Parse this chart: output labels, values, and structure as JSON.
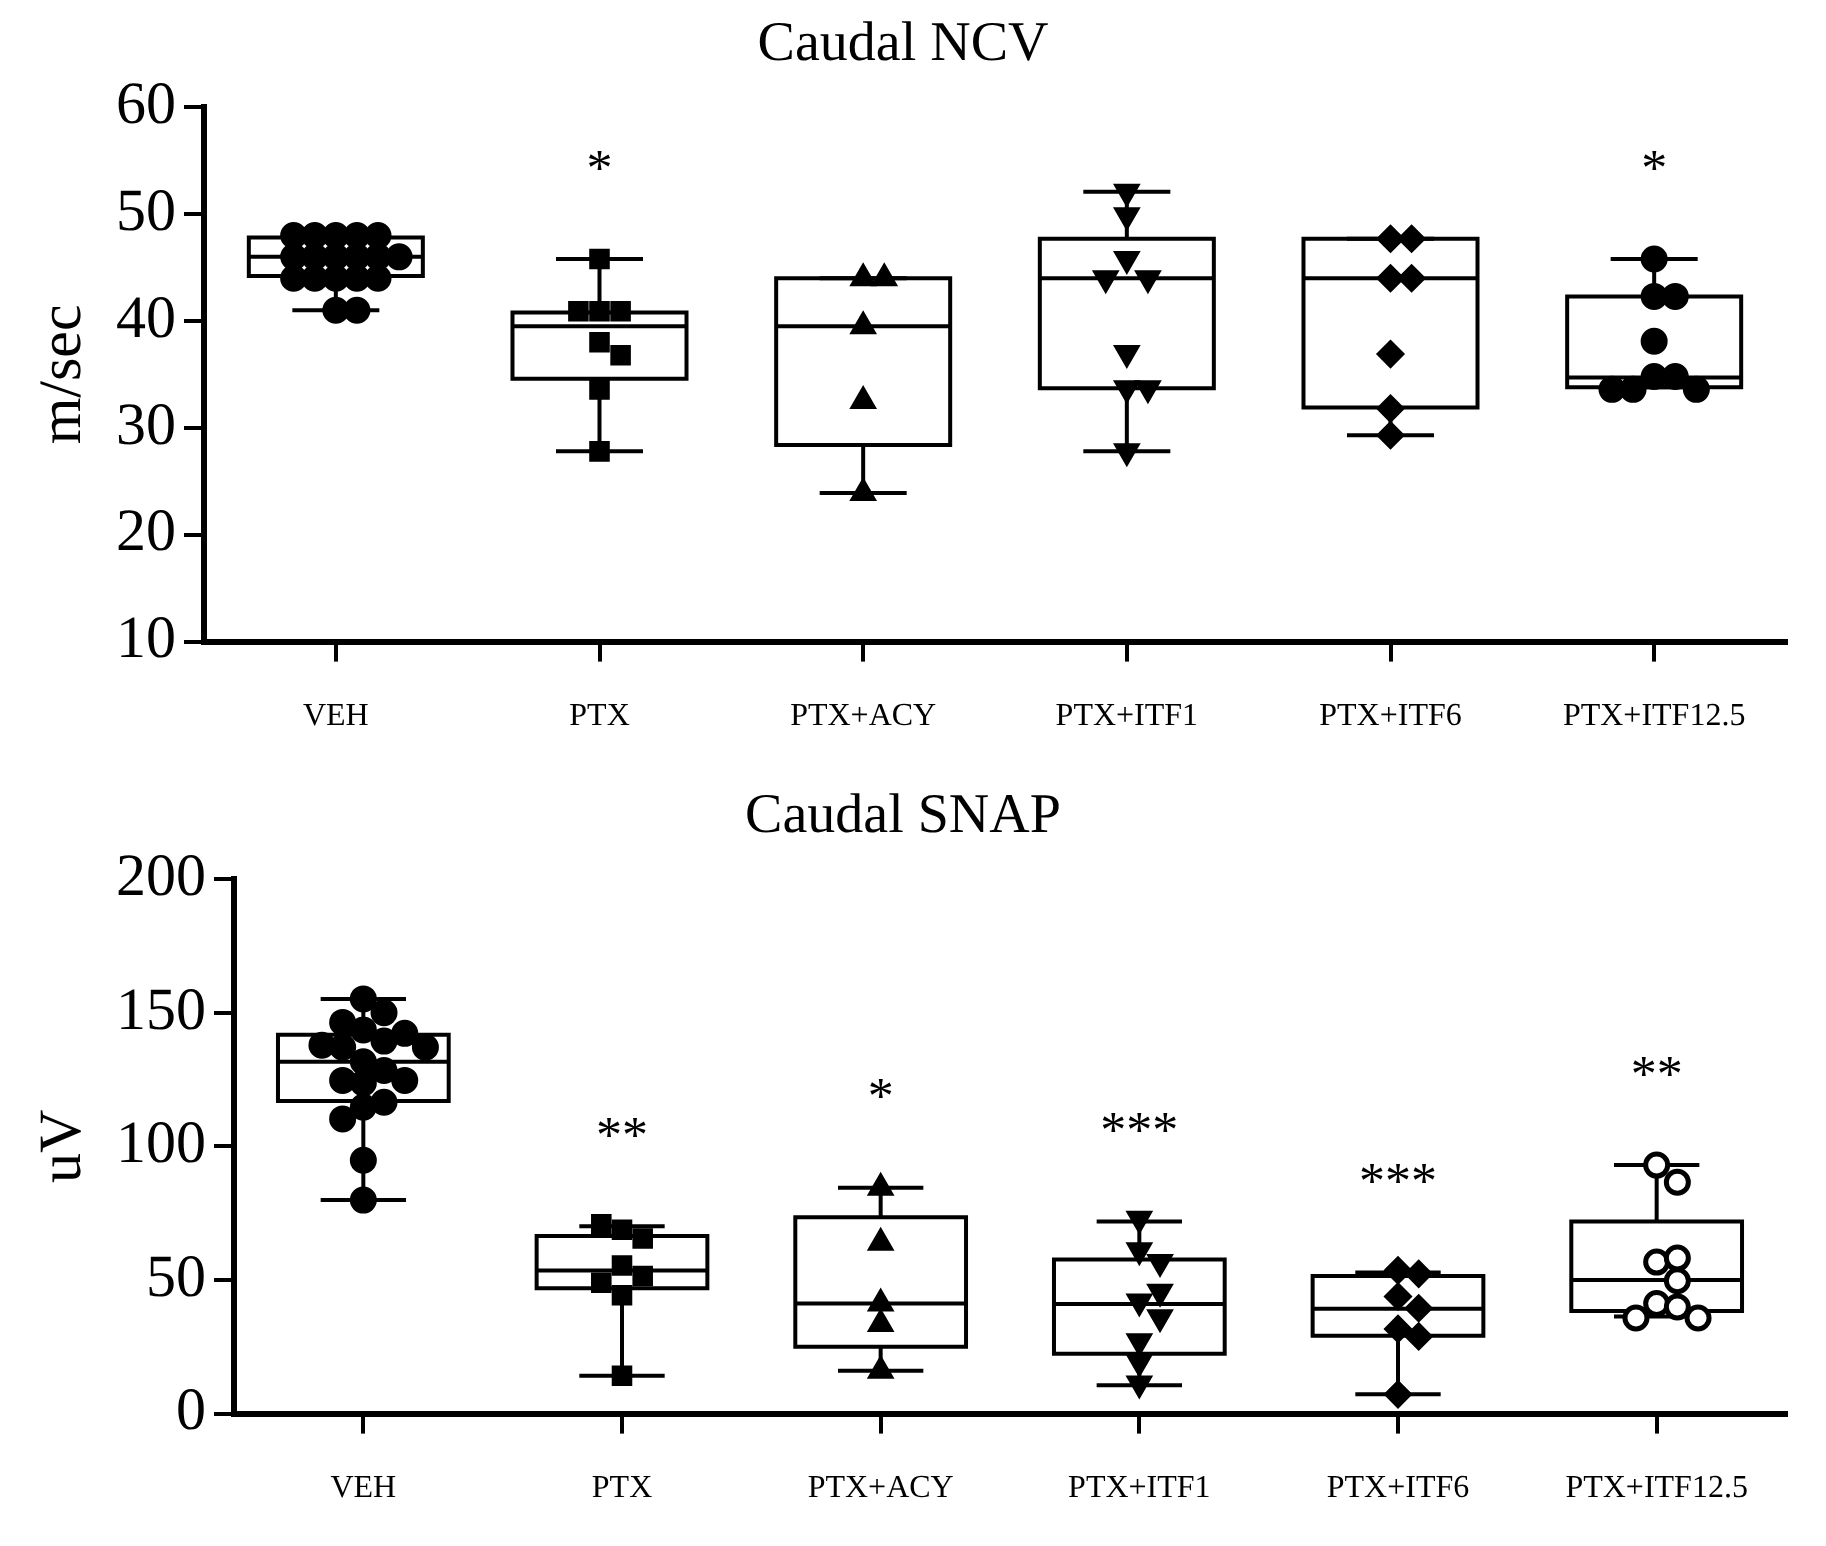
{
  "chart_data": [
    {
      "type": "box",
      "title": "Caudal NCV",
      "ylabel": "m/sec",
      "categories": [
        "VEH",
        "PTX",
        "PTX+ACY",
        "PTX+ITF1",
        "PTX+ITF6",
        "PTX+ITF12.5"
      ],
      "ylim": [
        10,
        60
      ],
      "yticks": [
        10,
        20,
        30,
        40,
        50,
        60
      ],
      "grid": false,
      "legend": false,
      "series": [
        {
          "type": "box",
          "color": "#000000",
          "boxes": [
            {
              "low": 41,
              "q1": 44.2,
              "median": 46,
              "q3": 47.8,
              "high": 48
            },
            {
              "low": 27.8,
              "q1": 34.6,
              "median": 39.5,
              "q3": 40.8,
              "high": 45.8
            },
            {
              "low": 23.9,
              "q1": 28.4,
              "median": 39.5,
              "q3": 44,
              "high": 44
            },
            {
              "low": 27.8,
              "q1": 33.7,
              "median": 44,
              "q3": 47.7,
              "high": 52.1
            },
            {
              "low": 29.3,
              "q1": 31.9,
              "median": 44,
              "q3": 47.7,
              "high": 47.7
            },
            {
              "low": 33.8,
              "q1": 33.8,
              "median": 34.7,
              "q3": 42.3,
              "high": 45.8
            }
          ]
        },
        {
          "type": "scatter",
          "marker": "circle",
          "color": "#000000",
          "x": [
            "VEH",
            "VEH",
            "VEH",
            "VEH",
            "VEH",
            "VEH",
            "VEH",
            "VEH",
            "VEH",
            "VEH",
            "VEH",
            "VEH",
            "VEH",
            "VEH",
            "VEH",
            "VEH",
            "VEH",
            "VEH"
          ],
          "values": [
            48,
            48,
            48,
            48,
            48,
            46,
            46,
            46,
            46,
            46,
            46,
            44,
            44,
            44,
            44,
            44,
            41,
            41
          ]
        },
        {
          "type": "scatter",
          "marker": "square",
          "color": "#000000",
          "x": [
            "PTX",
            "PTX",
            "PTX",
            "PTX",
            "PTX",
            "PTX",
            "PTX",
            "PTX"
          ],
          "values": [
            45.8,
            40.9,
            40.9,
            40.9,
            38,
            36.8,
            33.6,
            27.8
          ]
        },
        {
          "type": "scatter",
          "marker": "triangle",
          "color": "#000000",
          "x": [
            "PTX+ACY",
            "PTX+ACY",
            "PTX+ACY",
            "PTX+ACY",
            "PTX+ACY"
          ],
          "values": [
            44,
            44,
            39.5,
            32.5,
            23.9
          ]
        },
        {
          "type": "scatter",
          "marker": "triangle-down",
          "color": "#000000",
          "x": [
            "PTX+ITF1",
            "PTX+ITF1",
            "PTX+ITF1",
            "PTX+ITF1",
            "PTX+ITF1",
            "PTX+ITF1",
            "PTX+ITF1",
            "PTX+ITF1",
            "PTX+ITF1"
          ],
          "values": [
            52.1,
            49.9,
            45.8,
            44,
            44,
            37,
            33.7,
            33.7,
            27.8
          ]
        },
        {
          "type": "scatter",
          "marker": "diamond",
          "color": "#000000",
          "x": [
            "PTX+ITF6",
            "PTX+ITF6",
            "PTX+ITF6",
            "PTX+ITF6",
            "PTX+ITF6",
            "PTX+ITF6",
            "PTX+ITF6"
          ],
          "values": [
            47.7,
            47.7,
            44,
            44,
            36.9,
            31.8,
            29.3
          ]
        },
        {
          "type": "scatter",
          "marker": "circle",
          "color": "#000000",
          "x": [
            "PTX+ITF12.5",
            "PTX+ITF12.5",
            "PTX+ITF12.5",
            "PTX+ITF12.5",
            "PTX+ITF12.5",
            "PTX+ITF12.5",
            "PTX+ITF12.5",
            "PTX+ITF12.5",
            "PTX+ITF12.5"
          ],
          "values": [
            45.8,
            42.3,
            42.3,
            38.1,
            34.8,
            34.8,
            33.6,
            33.6,
            33.6
          ]
        }
      ],
      "annotations": [
        {
          "text": "*",
          "x": "PTX",
          "y": 45.8
        },
        {
          "text": "*",
          "x": "PTX+ITF12.5",
          "y": 45.8
        }
      ]
    },
    {
      "type": "box",
      "title": "Caudal SNAP",
      "ylabel": "uV",
      "categories": [
        "VEH",
        "PTX",
        "PTX+ACY",
        "PTX+ITF1",
        "PTX+ITF6",
        "PTX+ITF12.5"
      ],
      "ylim": [
        0,
        200
      ],
      "yticks": [
        0,
        50,
        100,
        150,
        200
      ],
      "grid": false,
      "legend": false,
      "series": [
        {
          "type": "box",
          "color": "#000000",
          "boxes": [
            {
              "low": 79.9,
              "q1": 117,
              "median": 131.7,
              "q3": 141.8,
              "high": 155.2
            },
            {
              "low": 14.2,
              "q1": 46.9,
              "median": 53.6,
              "q3": 66.5,
              "high": 70.1
            },
            {
              "low": 16,
              "q1": 25,
              "median": 41.2,
              "q3": 73.5,
              "high": 84.5
            },
            {
              "low": 10.6,
              "q1": 22.4,
              "median": 41,
              "q3": 57.7,
              "high": 71.9
            },
            {
              "low": 7.2,
              "q1": 29.1,
              "median": 39.2,
              "q3": 51.5,
              "high": 52.8
            },
            {
              "low": 36.3,
              "q1": 38.4,
              "median": 50,
              "q3": 71.9,
              "high": 93
            }
          ]
        },
        {
          "type": "scatter",
          "marker": "circle",
          "color": "#000000",
          "x": [
            "VEH",
            "VEH",
            "VEH",
            "VEH",
            "VEH",
            "VEH",
            "VEH",
            "VEH",
            "VEH",
            "VEH",
            "VEH",
            "VEH",
            "VEH",
            "VEH",
            "VEH",
            "VEH",
            "VEH",
            "VEH",
            "VEH"
          ],
          "values": [
            143.6,
            139.4,
            146.4,
            150,
            155.2,
            142.3,
            131.7,
            137.1,
            137.9,
            137.1,
            128.4,
            124.7,
            123.7,
            124.7,
            114.7,
            116.5,
            110.3,
            94.8,
            79.9
          ]
        },
        {
          "type": "scatter",
          "marker": "square",
          "color": "#000000",
          "x": [
            "PTX",
            "PTX",
            "PTX",
            "PTX",
            "PTX",
            "PTX",
            "PTX",
            "PTX"
          ],
          "values": [
            68.8,
            65.5,
            70.9,
            55.4,
            51.5,
            49,
            44.3,
            14.2
          ]
        },
        {
          "type": "scatter",
          "marker": "triangle",
          "color": "#000000",
          "x": [
            "PTX+ACY",
            "PTX+ACY",
            "PTX+ACY",
            "PTX+ACY",
            "PTX+ACY"
          ],
          "values": [
            84.5,
            63.9,
            41.2,
            33.5,
            16
          ]
        },
        {
          "type": "scatter",
          "marker": "triangle-down",
          "color": "#000000",
          "x": [
            "PTX+ITF1",
            "PTX+ITF1",
            "PTX+ITF1",
            "PTX+ITF1",
            "PTX+ITF1",
            "PTX+ITF1",
            "PTX+ITF1",
            "PTX+ITF1",
            "PTX+ITF1"
          ],
          "values": [
            72.9,
            61.1,
            56.7,
            42,
            45.6,
            36.1,
            27.1,
            19.3,
            11.3
          ]
        },
        {
          "type": "scatter",
          "marker": "diamond",
          "color": "#000000",
          "x": [
            "PTX+ITF6",
            "PTX+ITF6",
            "PTX+ITF6",
            "PTX+ITF6",
            "PTX+ITF6",
            "PTX+ITF6",
            "PTX+ITF6"
          ],
          "values": [
            53.6,
            52.3,
            43.8,
            39.4,
            31.7,
            28.9,
            7.2
          ]
        },
        {
          "type": "scatter",
          "marker": "circle-open",
          "color": "#000000",
          "x": [
            "PTX+ITF12.5",
            "PTX+ITF12.5",
            "PTX+ITF12.5",
            "PTX+ITF12.5",
            "PTX+ITF12.5",
            "PTX+ITF12.5",
            "PTX+ITF12.5",
            "PTX+ITF12.5",
            "PTX+ITF12.5"
          ],
          "values": [
            93,
            86.6,
            56.7,
            58.2,
            49.7,
            41.2,
            39.9,
            35.8,
            35.8
          ]
        }
      ],
      "annotations": [
        {
          "text": "**",
          "x": "PTX",
          "y": 70.1
        },
        {
          "text": "*",
          "x": "PTX+ACY",
          "y": 84.5
        },
        {
          "text": "***",
          "x": "PTX+ITF1",
          "y": 71.9
        },
        {
          "text": "***",
          "x": "PTX+ITF6",
          "y": 52.8
        },
        {
          "text": "**",
          "x": "PTX+ITF12.5",
          "y": 93
        }
      ]
    }
  ]
}
